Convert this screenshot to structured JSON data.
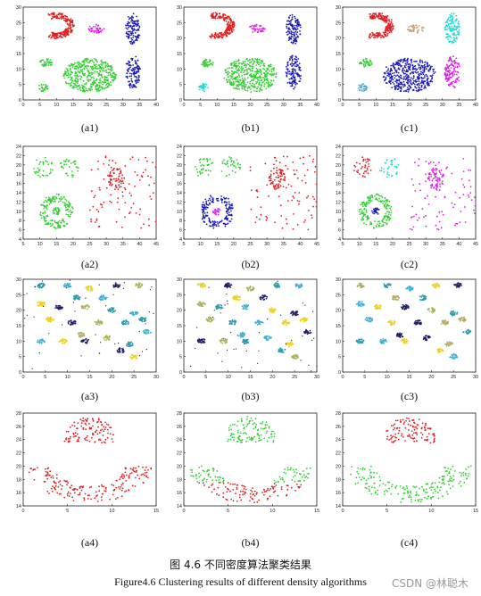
{
  "figure": {
    "caption_cn": "图 4.6 不同密度算法聚类结果",
    "caption_en": "Figure4.6 Clustering results of different density algorithms",
    "watermark": "CSDN @林聪木"
  },
  "colors": {
    "red": "#e02020",
    "magenta": "#e020e0",
    "blue": "#1a1ab8",
    "green": "#30d030",
    "cyan": "#20d8d8",
    "tan": "#c8a070",
    "black": "#111111",
    "gold": "#f0d020",
    "teal": "#2a9ab0",
    "olive": "#b0b060",
    "navy": "#20206a",
    "sky": "#40b0d8"
  },
  "chart_data": [
    {
      "id": "a1",
      "type": "scatter",
      "label": "(a1)",
      "xlim": [
        0,
        40
      ],
      "ylim": [
        0,
        30
      ],
      "xticks": [
        "0",
        "5",
        "10",
        "15",
        "20",
        "25",
        "30",
        "35",
        "40"
      ],
      "yticks": [
        "0",
        "5",
        "10",
        "15",
        "20",
        "25",
        "30"
      ],
      "clusters": [
        {
          "shape": "crescent",
          "color": "red",
          "n": 210,
          "cx": 10,
          "cy": 24,
          "r": 6,
          "w": 2.6
        },
        {
          "shape": "blob",
          "color": "magenta",
          "n": 40,
          "cx": 22,
          "cy": 23,
          "rx": 2.5,
          "ry": 1.4
        },
        {
          "shape": "blob",
          "color": "blue",
          "n": 120,
          "cx": 33,
          "cy": 23,
          "rx": 2.2,
          "ry": 5
        },
        {
          "shape": "blob",
          "color": "blue",
          "n": 120,
          "cx": 33,
          "cy": 9,
          "rx": 2.3,
          "ry": 5.5
        },
        {
          "shape": "blob",
          "color": "green",
          "n": 40,
          "cx": 7,
          "cy": 12,
          "rx": 2,
          "ry": 1.3
        },
        {
          "shape": "blob",
          "color": "green",
          "n": 30,
          "cx": 6,
          "cy": 4,
          "rx": 1.5,
          "ry": 1.3
        },
        {
          "shape": "blob",
          "color": "green",
          "n": 420,
          "cx": 20,
          "cy": 8,
          "rx": 8,
          "ry": 5.5
        }
      ]
    },
    {
      "id": "b1",
      "type": "scatter",
      "label": "(b1)",
      "xlim": [
        0,
        40
      ],
      "ylim": [
        0,
        30
      ],
      "xticks": [
        "0",
        "5",
        "10",
        "15",
        "20",
        "25",
        "30",
        "35",
        "40"
      ],
      "yticks": [
        "0",
        "5",
        "10",
        "15",
        "20",
        "25",
        "30"
      ],
      "clusters": [
        {
          "shape": "crescent",
          "color": "red",
          "n": 210,
          "cx": 10,
          "cy": 24,
          "r": 6,
          "w": 2.6
        },
        {
          "shape": "blob",
          "color": "magenta",
          "n": 40,
          "cx": 22,
          "cy": 23,
          "rx": 2.5,
          "ry": 1.4
        },
        {
          "shape": "blob",
          "color": "blue",
          "n": 120,
          "cx": 33,
          "cy": 23,
          "rx": 2.2,
          "ry": 5
        },
        {
          "shape": "blob",
          "color": "blue",
          "n": 120,
          "cx": 33,
          "cy": 9,
          "rx": 2.3,
          "ry": 5.5
        },
        {
          "shape": "blob",
          "color": "green",
          "n": 40,
          "cx": 7,
          "cy": 12,
          "rx": 2,
          "ry": 1.3
        },
        {
          "shape": "blob",
          "color": "cyan",
          "n": 30,
          "cx": 6,
          "cy": 4,
          "rx": 1.5,
          "ry": 1.3
        },
        {
          "shape": "blob",
          "color": "green",
          "n": 420,
          "cx": 20,
          "cy": 8,
          "rx": 8,
          "ry": 5.5
        }
      ]
    },
    {
      "id": "c1",
      "type": "scatter",
      "label": "(c1)",
      "xlim": [
        0,
        40
      ],
      "ylim": [
        0,
        30
      ],
      "xticks": [
        "0",
        "5",
        "10",
        "15",
        "20",
        "25",
        "30",
        "35",
        "40"
      ],
      "yticks": [
        "0",
        "5",
        "10",
        "15",
        "20",
        "25",
        "30"
      ],
      "clusters": [
        {
          "shape": "crescent",
          "color": "red",
          "n": 210,
          "cx": 10,
          "cy": 24,
          "r": 6,
          "w": 2.6
        },
        {
          "shape": "blob",
          "color": "tan",
          "n": 40,
          "cx": 22,
          "cy": 23,
          "rx": 2.5,
          "ry": 1.4
        },
        {
          "shape": "blob",
          "color": "cyan",
          "n": 120,
          "cx": 33,
          "cy": 23,
          "rx": 2.2,
          "ry": 5
        },
        {
          "shape": "blob",
          "color": "magenta",
          "n": 120,
          "cx": 33,
          "cy": 9,
          "rx": 2.3,
          "ry": 5.5
        },
        {
          "shape": "blob",
          "color": "green",
          "n": 40,
          "cx": 7,
          "cy": 12,
          "rx": 2,
          "ry": 1.3
        },
        {
          "shape": "blob",
          "color": "sky",
          "n": 30,
          "cx": 6,
          "cy": 4,
          "rx": 1.5,
          "ry": 1.3
        },
        {
          "shape": "blob",
          "color": "blue",
          "n": 420,
          "cx": 20,
          "cy": 8,
          "rx": 8,
          "ry": 5.5
        }
      ]
    },
    {
      "id": "a2",
      "type": "scatter",
      "label": "(a2)",
      "xlim": [
        5,
        45
      ],
      "ylim": [
        4,
        24
      ],
      "xticks": [
        "5",
        "10",
        "15",
        "20",
        "25",
        "30",
        "35",
        "40",
        "45"
      ],
      "yticks": [
        "4",
        "6",
        "8",
        "10",
        "12",
        "14",
        "16",
        "18",
        "20",
        "22",
        "24"
      ],
      "clusters": [
        {
          "shape": "blob",
          "color": "green",
          "n": 35,
          "cx": 11,
          "cy": 19.5,
          "rx": 3,
          "ry": 2.2
        },
        {
          "shape": "blob",
          "color": "green",
          "n": 35,
          "cx": 19,
          "cy": 19.5,
          "rx": 3,
          "ry": 2.2
        },
        {
          "shape": "ring",
          "color": "green",
          "n": 170,
          "cx": 15,
          "cy": 10,
          "r": 5,
          "w": 2.2
        },
        {
          "shape": "blob",
          "color": "green",
          "n": 25,
          "cx": 15,
          "cy": 10,
          "rx": 1.2,
          "ry": 0.8
        },
        {
          "shape": "blob",
          "color": "red",
          "n": 60,
          "cx": 33,
          "cy": 17,
          "rx": 2.5,
          "ry": 2.5
        },
        {
          "shape": "grid",
          "color": "red",
          "n": 90,
          "cx": 35,
          "cy": 14,
          "rx": 10,
          "ry": 8
        }
      ]
    },
    {
      "id": "b2",
      "type": "scatter",
      "label": "(b2)",
      "xlim": [
        5,
        45
      ],
      "ylim": [
        4,
        24
      ],
      "xticks": [
        "5",
        "10",
        "15",
        "20",
        "25",
        "30",
        "35",
        "40",
        "45"
      ],
      "yticks": [
        "4",
        "6",
        "8",
        "10",
        "12",
        "14",
        "16",
        "18",
        "20",
        "22",
        "24"
      ],
      "clusters": [
        {
          "shape": "blob",
          "color": "green",
          "n": 35,
          "cx": 11,
          "cy": 19.5,
          "rx": 3,
          "ry": 2.2
        },
        {
          "shape": "blob",
          "color": "green",
          "n": 35,
          "cx": 19,
          "cy": 19.5,
          "rx": 3,
          "ry": 2.2
        },
        {
          "shape": "ring",
          "color": "blue",
          "n": 170,
          "cx": 15,
          "cy": 10,
          "r": 5,
          "w": 2.2
        },
        {
          "shape": "blob",
          "color": "magenta",
          "n": 25,
          "cx": 15,
          "cy": 10,
          "rx": 1.2,
          "ry": 0.8
        },
        {
          "shape": "blob",
          "color": "red",
          "n": 60,
          "cx": 33,
          "cy": 17,
          "rx": 2.5,
          "ry": 2.5
        },
        {
          "shape": "grid",
          "color": "red",
          "n": 90,
          "cx": 35,
          "cy": 14,
          "rx": 10,
          "ry": 8
        }
      ]
    },
    {
      "id": "c2",
      "type": "scatter",
      "label": "(c2)",
      "xlim": [
        5,
        45
      ],
      "ylim": [
        4,
        24
      ],
      "xticks": [
        "5",
        "10",
        "15",
        "20",
        "25",
        "30",
        "35",
        "40",
        "45"
      ],
      "yticks": [
        "4",
        "6",
        "8",
        "10",
        "12",
        "14",
        "16",
        "18",
        "20",
        "22",
        "24"
      ],
      "clusters": [
        {
          "shape": "blob",
          "color": "red",
          "n": 35,
          "cx": 11,
          "cy": 19.5,
          "rx": 3,
          "ry": 2.2
        },
        {
          "shape": "blob",
          "color": "cyan",
          "n": 35,
          "cx": 19,
          "cy": 19.5,
          "rx": 3,
          "ry": 2.2
        },
        {
          "shape": "ring",
          "color": "green",
          "n": 170,
          "cx": 15,
          "cy": 10,
          "r": 5,
          "w": 2.2
        },
        {
          "shape": "blob",
          "color": "blue",
          "n": 25,
          "cx": 15,
          "cy": 10,
          "rx": 1.2,
          "ry": 0.8
        },
        {
          "shape": "blob",
          "color": "magenta",
          "n": 60,
          "cx": 33,
          "cy": 17,
          "rx": 2.5,
          "ry": 2.5
        },
        {
          "shape": "grid",
          "color": "magenta",
          "n": 90,
          "cx": 35,
          "cy": 14,
          "rx": 10,
          "ry": 8
        }
      ]
    },
    {
      "id": "a3",
      "type": "scatter",
      "label": "(a3)",
      "xlim": [
        0,
        30
      ],
      "ylim": [
        0,
        30
      ],
      "xticks": [
        "0",
        "5",
        "10",
        "15",
        "20",
        "25",
        "30"
      ],
      "yticks": [
        "0",
        "5",
        "10",
        "15",
        "20",
        "25",
        "30"
      ],
      "clusters": "many",
      "palette": [
        "teal",
        "gold",
        "olive",
        "sky",
        "navy",
        "black"
      ]
    },
    {
      "id": "b3",
      "type": "scatter",
      "label": "(b3)",
      "xlim": [
        0,
        30
      ],
      "ylim": [
        0,
        30
      ],
      "xticks": [
        "0",
        "5",
        "10",
        "15",
        "20",
        "25",
        "30"
      ],
      "yticks": [
        "0",
        "5",
        "10",
        "15",
        "20",
        "25",
        "30"
      ],
      "clusters": "many",
      "palette": [
        "teal",
        "gold",
        "olive",
        "sky",
        "navy",
        "black"
      ]
    },
    {
      "id": "c3",
      "type": "scatter",
      "label": "(c3)",
      "xlim": [
        0,
        30
      ],
      "ylim": [
        0,
        30
      ],
      "xticks": [
        "0",
        "5",
        "10",
        "15",
        "20",
        "25",
        "30"
      ],
      "yticks": [
        "0",
        "5",
        "10",
        "15",
        "20",
        "25",
        "30"
      ],
      "clusters": "many",
      "palette": [
        "teal",
        "gold",
        "olive",
        "sky",
        "navy",
        "blue"
      ]
    },
    {
      "id": "a4",
      "type": "scatter",
      "label": "(a4)",
      "xlim": [
        0,
        15
      ],
      "ylim": [
        14,
        28
      ],
      "xticks": [
        "0",
        "5",
        "10",
        "15"
      ],
      "yticks": [
        "14",
        "16",
        "18",
        "20",
        "22",
        "24",
        "26",
        "28"
      ],
      "clusters": [
        {
          "shape": "fan",
          "color": "red",
          "n": 110,
          "cx": 7.5,
          "cy": 23.5,
          "rx": 3,
          "ry": 4
        },
        {
          "shape": "bowl",
          "color": "red",
          "n": 190,
          "cx": 7.5,
          "cy": 20,
          "rx": 7,
          "ry": 5.5
        }
      ]
    },
    {
      "id": "b4",
      "type": "scatter",
      "label": "(b4)",
      "xlim": [
        0,
        15
      ],
      "ylim": [
        14,
        28
      ],
      "xticks": [
        "0",
        "5",
        "10",
        "15"
      ],
      "yticks": [
        "14",
        "16",
        "18",
        "20",
        "22",
        "24",
        "26",
        "28"
      ],
      "clusters": [
        {
          "shape": "fan",
          "color": "green",
          "n": 110,
          "cx": 7.5,
          "cy": 23.5,
          "rx": 3,
          "ry": 4
        },
        {
          "shape": "bowlsplit",
          "color": "green",
          "color2": "red",
          "n": 190,
          "cx": 7.5,
          "cy": 20,
          "rx": 7,
          "ry": 5.5
        }
      ]
    },
    {
      "id": "c4",
      "type": "scatter",
      "label": "(c4)",
      "xlim": [
        0,
        15
      ],
      "ylim": [
        14,
        28
      ],
      "xticks": [
        "0",
        "5",
        "10",
        "15"
      ],
      "yticks": [
        "14",
        "16",
        "18",
        "20",
        "22",
        "24",
        "26",
        "28"
      ],
      "clusters": [
        {
          "shape": "fan",
          "color": "red",
          "n": 110,
          "cx": 7.5,
          "cy": 23.5,
          "rx": 3,
          "ry": 4
        },
        {
          "shape": "bowl",
          "color": "green",
          "n": 190,
          "cx": 7.5,
          "cy": 20,
          "rx": 7,
          "ry": 5.5
        }
      ]
    }
  ]
}
